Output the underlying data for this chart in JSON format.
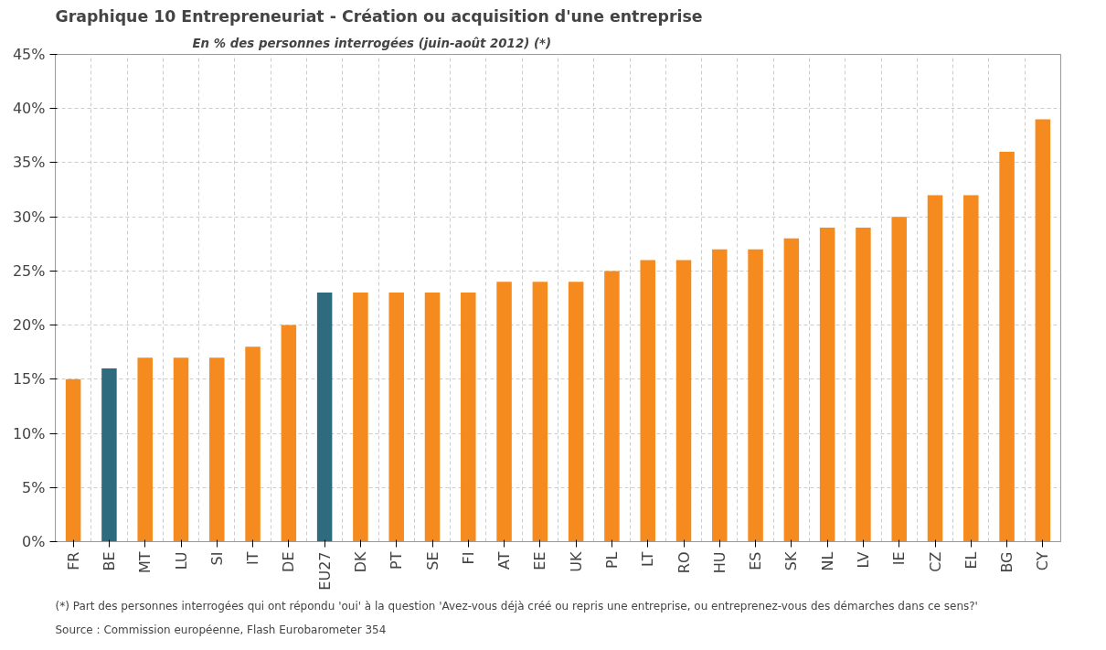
{
  "chart_data": {
    "type": "bar",
    "title": "Graphique 10    Entrepreneuriat - Création ou acquisition d'une entreprise",
    "subtitle": "En % des personnes interrogées (juin-août 2012) (*)",
    "categories": [
      "FR",
      "BE",
      "MT",
      "LU",
      "SI",
      "IT",
      "DE",
      "EU27",
      "DK",
      "PT",
      "SE",
      "FI",
      "AT",
      "EE",
      "UK",
      "PL",
      "LT",
      "RO",
      "HU",
      "ES",
      "SK",
      "NL",
      "LV",
      "IE",
      "CZ",
      "EL",
      "BG",
      "CY"
    ],
    "values": [
      15,
      16,
      17,
      17,
      17,
      18,
      20,
      23,
      23,
      23,
      23,
      23,
      24,
      24,
      24,
      25,
      26,
      26,
      27,
      27,
      28,
      29,
      29,
      30,
      32,
      32,
      36,
      39
    ],
    "colors": [
      "#f58a1f",
      "#2e6b7e",
      "#f58a1f",
      "#f58a1f",
      "#f58a1f",
      "#f58a1f",
      "#f58a1f",
      "#2e6b7e",
      "#f58a1f",
      "#f58a1f",
      "#f58a1f",
      "#f58a1f",
      "#f58a1f",
      "#f58a1f",
      "#f58a1f",
      "#f58a1f",
      "#f58a1f",
      "#f58a1f",
      "#f58a1f",
      "#f58a1f",
      "#f58a1f",
      "#f58a1f",
      "#f58a1f",
      "#f58a1f",
      "#f58a1f",
      "#f58a1f",
      "#f58a1f",
      "#f58a1f"
    ],
    "ylim": [
      0,
      45
    ],
    "yticks": [
      {
        "value": 0,
        "label": "0%"
      },
      {
        "value": 5,
        "label": "5%"
      },
      {
        "value": 10,
        "label": "10%"
      },
      {
        "value": 15,
        "label": "15%"
      },
      {
        "value": 20,
        "label": "20%"
      },
      {
        "value": 25,
        "label": "25%"
      },
      {
        "value": 30,
        "label": "30%"
      },
      {
        "value": 35,
        "label": "35%"
      },
      {
        "value": 40,
        "label": "40%"
      },
      {
        "value": 45,
        "label": "45%"
      }
    ],
    "grid": true,
    "annotations": [
      "Source : Commission européenne, Flash Eurobarometer 354",
      "(*) Part des personnes interrogées qui ont répondu 'oui' à la question 'Avez-vous déjà créé ou repris une entreprise, ou entreprenez-vous des démarches dans ce sens?'"
    ]
  }
}
